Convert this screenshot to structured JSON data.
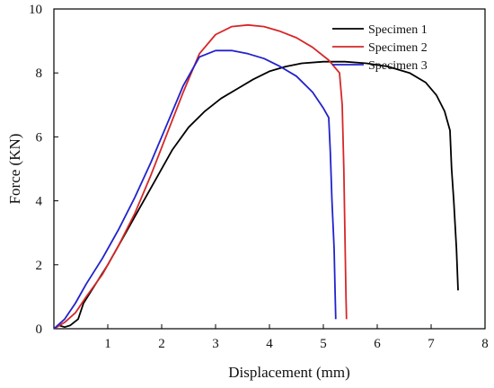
{
  "chart_data": {
    "type": "line",
    "title": "",
    "xlabel": "Displacement (mm)",
    "ylabel": "Force (KN)",
    "xlim": [
      0,
      8
    ],
    "ylim": [
      0,
      10
    ],
    "x_ticks": [
      "1",
      "2",
      "3",
      "4",
      "5",
      "6",
      "7",
      "8"
    ],
    "y_ticks": [
      "0",
      "2",
      "4",
      "6",
      "8",
      "10"
    ],
    "grid": false,
    "legend_position": "top-right",
    "series": [
      {
        "name": "Specimen 1",
        "color": "#000000",
        "x": [
          0,
          0.1,
          0.2,
          0.3,
          0.45,
          0.55,
          0.7,
          1.0,
          1.3,
          1.6,
          1.9,
          2.2,
          2.5,
          2.8,
          3.1,
          3.4,
          3.7,
          4.0,
          4.3,
          4.6,
          5.0,
          5.4,
          5.8,
          6.2,
          6.6,
          6.9,
          7.1,
          7.25,
          7.35,
          7.38,
          7.42,
          7.47,
          7.5
        ],
        "y": [
          0,
          0.1,
          0.05,
          0.1,
          0.3,
          0.8,
          1.2,
          2.0,
          2.9,
          3.8,
          4.7,
          5.6,
          6.3,
          6.8,
          7.2,
          7.5,
          7.8,
          8.05,
          8.2,
          8.3,
          8.35,
          8.35,
          8.3,
          8.2,
          8.0,
          7.7,
          7.3,
          6.8,
          6.2,
          5.0,
          4.0,
          2.5,
          1.2
        ]
      },
      {
        "name": "Specimen 2",
        "color": "#d62728",
        "x": [
          0,
          0.2,
          0.4,
          0.6,
          0.9,
          1.2,
          1.5,
          1.8,
          2.1,
          2.4,
          2.7,
          3.0,
          3.3,
          3.6,
          3.9,
          4.2,
          4.5,
          4.8,
          5.1,
          5.3,
          5.35,
          5.38,
          5.4,
          5.42,
          5.43
        ],
        "y": [
          0,
          0.2,
          0.5,
          1.0,
          1.7,
          2.6,
          3.6,
          4.8,
          6.1,
          7.4,
          8.6,
          9.2,
          9.45,
          9.5,
          9.45,
          9.3,
          9.1,
          8.8,
          8.4,
          8.0,
          7.0,
          5.0,
          3.0,
          1.0,
          0.3
        ]
      },
      {
        "name": "Specimen 3",
        "color": "#2222cc",
        "x": [
          0,
          0.2,
          0.4,
          0.6,
          0.9,
          1.2,
          1.5,
          1.8,
          2.1,
          2.4,
          2.7,
          3.0,
          3.3,
          3.6,
          3.9,
          4.2,
          4.5,
          4.8,
          5.0,
          5.1,
          5.13,
          5.16,
          5.2,
          5.22,
          5.23
        ],
        "y": [
          0,
          0.3,
          0.8,
          1.4,
          2.2,
          3.1,
          4.1,
          5.2,
          6.4,
          7.6,
          8.5,
          8.7,
          8.7,
          8.6,
          8.45,
          8.2,
          7.9,
          7.4,
          6.9,
          6.6,
          5.5,
          4.0,
          2.5,
          1.0,
          0.3
        ]
      }
    ]
  }
}
